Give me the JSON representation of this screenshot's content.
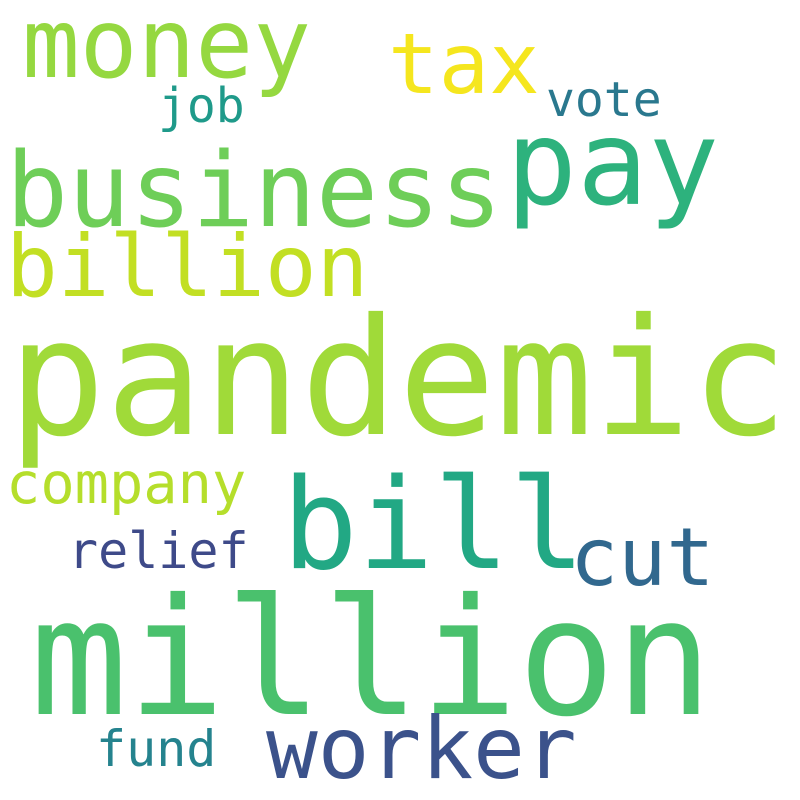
{
  "words": [
    {
      "text": "pandemic",
      "color": "#a0da39"
    },
    {
      "text": "million",
      "color": "#4ac16d"
    },
    {
      "text": "bill",
      "color": "#22a884"
    },
    {
      "text": "business",
      "color": "#6ece58"
    },
    {
      "text": "pay",
      "color": "#2db27d"
    },
    {
      "text": "money",
      "color": "#95d840"
    },
    {
      "text": "worker",
      "color": "#3b528b"
    },
    {
      "text": "billion",
      "color": "#c2df23"
    },
    {
      "text": "tax",
      "color": "#f5e61e"
    },
    {
      "text": "cut",
      "color": "#31688e"
    },
    {
      "text": "company",
      "color": "#b5de2b"
    },
    {
      "text": "relief",
      "color": "#3e4a89"
    },
    {
      "text": "fund",
      "color": "#25838e"
    },
    {
      "text": "vote",
      "color": "#2a788e"
    },
    {
      "text": "job",
      "color": "#1f9a8a"
    }
  ]
}
